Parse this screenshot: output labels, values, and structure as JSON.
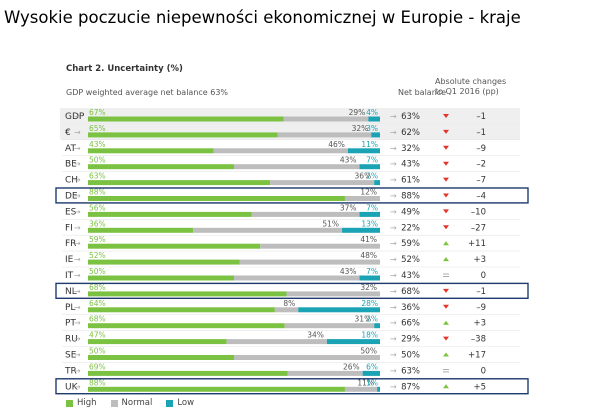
{
  "page_title": "Wysokie poczucie niepewności ekonomicznej w Europie - kraje",
  "chart_data": {
    "type": "bar",
    "title": "Chart 2. Uncertainty (%)",
    "subtitle": "GDP weighted average net balance 63%",
    "column_headers": {
      "net_balance": "Net balance",
      "changes": [
        "Absolute changes",
        "to Q1 2016 (pp)"
      ]
    },
    "stacked": true,
    "arrow_glyph": "→",
    "categories": [
      "GDP",
      "€",
      "AT",
      "BE",
      "CH",
      "DE",
      "ES",
      "FI",
      "FR",
      "IE",
      "IT",
      "NL",
      "PL",
      "PT",
      "RU",
      "SE",
      "TR",
      "UK"
    ],
    "series": [
      {
        "name": "High",
        "color": "#7cc242",
        "values": [
          67,
          65,
          43,
          50,
          63,
          88,
          56,
          36,
          59,
          52,
          50,
          68,
          64,
          68,
          47,
          50,
          69,
          88
        ],
        "labels": [
          "67%",
          "65%",
          "43%",
          "50%",
          "63%",
          "88%",
          "56%",
          "36%",
          "59%",
          "52%",
          "50%",
          "68%",
          "64%",
          "68%",
          "47%",
          "50%",
          "69%",
          "88%"
        ]
      },
      {
        "name": "Normal",
        "color": "#bdbdbd",
        "values": [
          29,
          32,
          46,
          43,
          36,
          12,
          37,
          51,
          41,
          48,
          43,
          32,
          8,
          31,
          34,
          50,
          26,
          11
        ],
        "labels": [
          "29%",
          "32%",
          "46%",
          "43%",
          "36%",
          "12%",
          "37%",
          "51%",
          "41%",
          "48%",
          "43%",
          "32%",
          "8%",
          "31%",
          "34%",
          "50%",
          "26%",
          "11%"
        ]
      },
      {
        "name": "Low",
        "color": "#1aa3b5",
        "values": [
          4,
          3,
          11,
          7,
          2,
          0,
          7,
          13,
          0,
          0,
          7,
          0,
          28,
          2,
          18,
          0,
          6,
          1
        ],
        "labels": [
          "4%",
          "3%",
          "11%",
          "7%",
          "2%",
          "",
          "7%",
          "13%",
          "",
          "",
          "7%",
          "",
          "28%",
          "2%",
          "18%",
          "",
          "6%",
          "1%"
        ]
      }
    ],
    "net_balance": [
      "63%",
      "62%",
      "32%",
      "43%",
      "61%",
      "88%",
      "49%",
      "22%",
      "59%",
      "52%",
      "43%",
      "68%",
      "36%",
      "66%",
      "29%",
      "50%",
      "63%",
      "87%"
    ],
    "change_trend": [
      "down",
      "down",
      "down",
      "down",
      "down",
      "down",
      "down",
      "down",
      "up",
      "up",
      "equal",
      "down",
      "down",
      "up",
      "down",
      "up",
      "equal",
      "up"
    ],
    "change_trend_colors": {
      "down": "#e2342b",
      "up": "#7cc242",
      "equal": "#999999"
    },
    "changes": [
      "–1",
      "–1",
      "–9",
      "–2",
      "–7",
      "–4",
      "–10",
      "–27",
      "+11",
      "+3",
      "0",
      "–1",
      "–9",
      "+3",
      "–38",
      "+17",
      "0",
      "+5"
    ],
    "shaded_rows": [
      "GDP",
      "€"
    ],
    "highlighted_rows": [
      "DE",
      "NL",
      "UK"
    ],
    "legend": [
      "High",
      "Normal",
      "Low"
    ],
    "legend_position": "bottom-left"
  }
}
